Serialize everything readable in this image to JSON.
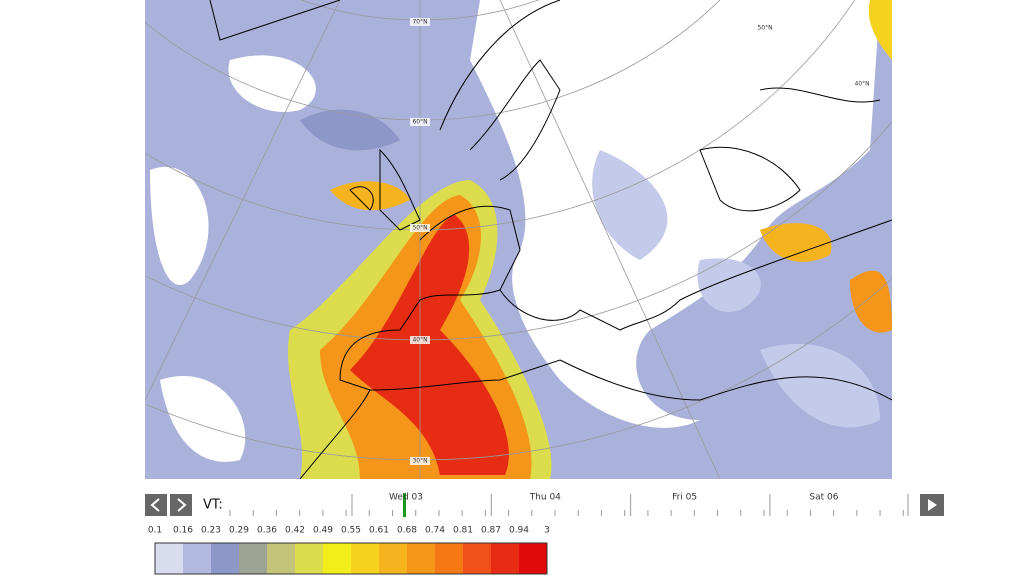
{
  "map": {
    "latitude_labels": [
      "70°N",
      "60°N",
      "50°N",
      "40°N",
      "30°N",
      "50°N",
      "40°N"
    ]
  },
  "timeline": {
    "label": "VT:",
    "days": [
      "Wed 03",
      "Thu 04",
      "Fri 05",
      "Sat 06"
    ]
  },
  "legend": {
    "values": [
      0.1,
      0.16,
      0.23,
      0.29,
      0.36,
      0.42,
      0.49,
      0.55,
      0.61,
      0.68,
      0.74,
      0.81,
      0.87,
      0.94,
      3
    ],
    "colors": [
      "#d9dcef",
      "#b3bae0",
      "#8d97c8",
      "#9ea493",
      "#c3c47a",
      "#dcdc4c",
      "#f2ee1c",
      "#f5d21e",
      "#f5b41e",
      "#f5961a",
      "#f57814",
      "#f0501a",
      "#e62d14",
      "#e00a0a"
    ]
  }
}
